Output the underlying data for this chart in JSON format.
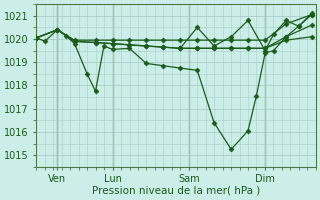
{
  "bg_color": "#cceee8",
  "grid_color": "#aacccc",
  "line_color": "#1a5c1a",
  "ylim": [
    1014.5,
    1021.5
  ],
  "yticks": [
    1015,
    1016,
    1017,
    1018,
    1019,
    1020,
    1021
  ],
  "xlabel": "Pression niveau de la mer( hPa )",
  "xlim": [
    0,
    7.33
  ],
  "xtick_positions": [
    0.55,
    2.0,
    4.0,
    6.0
  ],
  "xtick_labels": [
    "Ven",
    "Lun",
    "Sam",
    "Dim"
  ],
  "vline_positions": [
    0.55,
    2.0,
    4.0,
    6.0
  ],
  "series": [
    {
      "x": [
        0.0,
        0.22,
        0.55,
        0.77,
        1.0,
        1.33,
        1.55,
        1.77,
        2.0,
        2.44,
        2.88,
        3.33,
        3.77,
        4.22,
        4.66,
        5.11,
        5.55,
        5.77,
        6.0,
        6.22,
        6.55,
        6.88,
        7.22
      ],
      "y": [
        1020.05,
        1019.9,
        1020.4,
        1020.15,
        1019.8,
        1018.5,
        1017.75,
        1019.7,
        1019.55,
        1019.6,
        1018.95,
        1018.85,
        1018.75,
        1018.65,
        1016.4,
        1015.25,
        1016.05,
        1017.55,
        1019.4,
        1019.5,
        1020.1,
        1020.55,
        1021.1
      ]
    },
    {
      "x": [
        0.0,
        0.55,
        1.0,
        1.55,
        2.0,
        2.44,
        2.88,
        3.33,
        3.77,
        4.22,
        4.66,
        5.11,
        5.55,
        6.0,
        6.55,
        7.22
      ],
      "y": [
        1020.05,
        1020.4,
        1019.95,
        1019.95,
        1019.95,
        1019.95,
        1019.95,
        1019.95,
        1019.95,
        1019.95,
        1019.95,
        1019.95,
        1019.95,
        1019.95,
        1020.65,
        1021.05
      ]
    },
    {
      "x": [
        0.0,
        0.55,
        1.0,
        1.55,
        2.0,
        2.44,
        2.88,
        3.33,
        3.77,
        4.22,
        4.66,
        5.11,
        5.55,
        6.0,
        6.55,
        7.22
      ],
      "y": [
        1020.05,
        1020.4,
        1019.9,
        1019.85,
        1019.8,
        1019.75,
        1019.7,
        1019.65,
        1019.6,
        1019.6,
        1019.6,
        1019.6,
        1019.6,
        1019.6,
        1020.1,
        1020.6
      ]
    },
    {
      "x": [
        0.0,
        0.55,
        1.0,
        1.55,
        2.0,
        2.44,
        2.88,
        3.33,
        3.77,
        4.22,
        4.66,
        5.11,
        5.55,
        6.0,
        6.55,
        7.22
      ],
      "y": [
        1020.05,
        1020.4,
        1019.9,
        1019.85,
        1019.8,
        1019.75,
        1019.7,
        1019.65,
        1019.6,
        1019.6,
        1019.6,
        1019.6,
        1019.6,
        1019.6,
        1019.95,
        1020.1
      ]
    },
    {
      "x": [
        3.77,
        4.22,
        4.66,
        5.11,
        5.55,
        6.0,
        6.22,
        6.55,
        6.88,
        7.22
      ],
      "y": [
        1019.6,
        1020.5,
        1019.7,
        1020.1,
        1020.8,
        1019.5,
        1020.2,
        1020.8,
        1020.55,
        1021.05
      ]
    }
  ]
}
